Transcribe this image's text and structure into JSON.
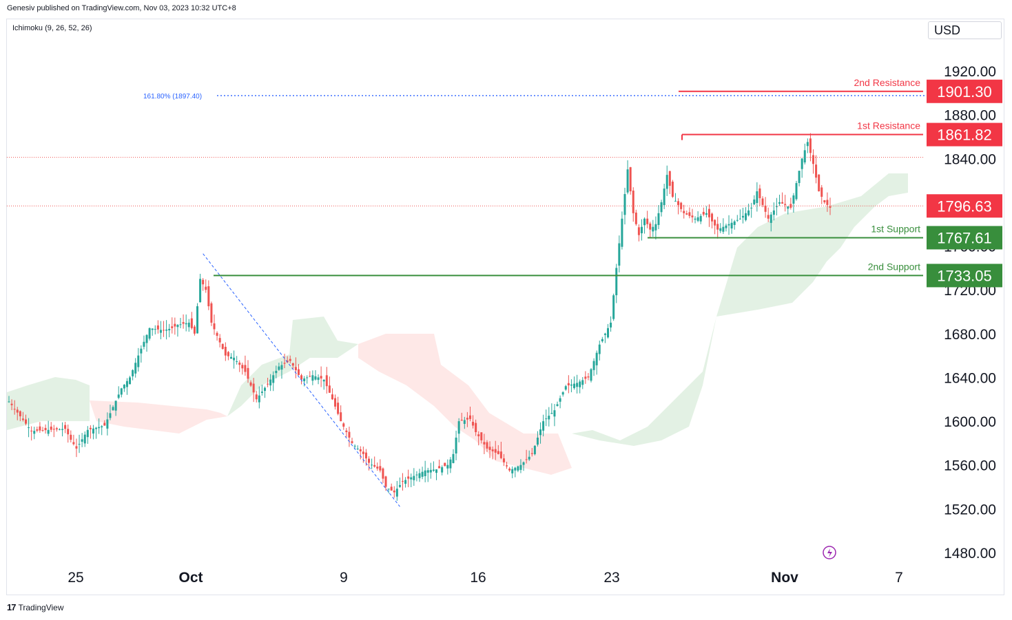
{
  "header": {
    "published_by": "Genesiv published on TradingView.com, Nov 03, 2023 10:32 UTC+8"
  },
  "indicator": {
    "label": "Ichimoku (9, 26, 52, 26)"
  },
  "currency": "USD",
  "footer": {
    "brand": "TradingView",
    "logo": "tradingview-logo"
  },
  "colors": {
    "up": "#26a69a",
    "down": "#ef5350",
    "resistance": "#f23645",
    "support": "#388e3c",
    "fib": "#2962ff"
  },
  "chart_data": {
    "type": "candlestick",
    "price_axis": {
      "ticks": [
        "1920.00",
        "1880.00",
        "1840.00",
        "1800.00",
        "1760.00",
        "1720.00",
        "1680.00",
        "1640.00",
        "1600.00",
        "1560.00",
        "1520.00",
        "1480.00"
      ],
      "values": [
        1920,
        1880,
        1840,
        1800,
        1760,
        1720,
        1680,
        1640,
        1600,
        1560,
        1520,
        1480
      ],
      "ylim": [
        1475,
        1930
      ]
    },
    "time_axis": {
      "labels": [
        "25",
        "Oct",
        "9",
        "16",
        "23",
        "Nov",
        "7"
      ],
      "bold": [
        "Oct",
        "Nov"
      ]
    },
    "levels": [
      {
        "name": "2nd Resistance",
        "value": 1901.3,
        "label": "1901.30",
        "kind": "resistance"
      },
      {
        "name": "1st Resistance",
        "value": 1861.82,
        "label": "1861.82",
        "kind": "resistance"
      },
      {
        "name": "",
        "value": 1796.63,
        "label": "1796.63",
        "kind": "current"
      },
      {
        "name": "1st Support",
        "value": 1767.61,
        "label": "1767.61",
        "kind": "support"
      },
      {
        "name": "2nd Support",
        "value": 1733.05,
        "label": "1733.05",
        "kind": "support"
      }
    ],
    "fib_label": "161.80% (1897.40)",
    "fib_value": 1897.4,
    "dotted_level": 1841,
    "close_path": [
      [
        0,
        1618
      ],
      [
        8,
        1591
      ],
      [
        14,
        1592
      ],
      [
        20,
        1593
      ],
      [
        22,
        1583
      ],
      [
        24,
        1575
      ],
      [
        28,
        1592
      ],
      [
        34,
        1596
      ],
      [
        40,
        1630
      ],
      [
        43,
        1640
      ],
      [
        46,
        1660
      ],
      [
        50,
        1685
      ],
      [
        55,
        1683
      ],
      [
        58,
        1685
      ],
      [
        60,
        1688
      ],
      [
        64,
        1690
      ],
      [
        66,
        1680
      ],
      [
        68,
        1730
      ],
      [
        70,
        1720
      ],
      [
        72,
        1690
      ],
      [
        75,
        1672
      ],
      [
        77,
        1660
      ],
      [
        80,
        1658
      ],
      [
        84,
        1645
      ],
      [
        88,
        1620
      ],
      [
        92,
        1634
      ],
      [
        96,
        1650
      ],
      [
        100,
        1655
      ],
      [
        104,
        1638
      ],
      [
        108,
        1642
      ],
      [
        112,
        1638
      ],
      [
        115,
        1620
      ],
      [
        118,
        1600
      ],
      [
        122,
        1580
      ],
      [
        126,
        1570
      ],
      [
        128,
        1562
      ],
      [
        132,
        1555
      ],
      [
        134,
        1540
      ],
      [
        137,
        1535
      ],
      [
        140,
        1545
      ],
      [
        144,
        1550
      ],
      [
        148,
        1555
      ],
      [
        152,
        1556
      ],
      [
        156,
        1560
      ],
      [
        158,
        1570
      ],
      [
        160,
        1600
      ],
      [
        164,
        1602
      ],
      [
        166,
        1590
      ],
      [
        170,
        1575
      ],
      [
        174,
        1570
      ],
      [
        178,
        1555
      ],
      [
        182,
        1560
      ],
      [
        186,
        1570
      ],
      [
        190,
        1600
      ],
      [
        194,
        1610
      ],
      [
        198,
        1632
      ],
      [
        202,
        1635
      ],
      [
        206,
        1640
      ],
      [
        210,
        1670
      ],
      [
        214,
        1690
      ],
      [
        216,
        1740
      ],
      [
        220,
        1830
      ],
      [
        222,
        1790
      ],
      [
        224,
        1770
      ],
      [
        226,
        1785
      ],
      [
        228,
        1775
      ],
      [
        230,
        1780
      ],
      [
        232,
        1800
      ],
      [
        234,
        1825
      ],
      [
        236,
        1805
      ],
      [
        240,
        1790
      ],
      [
        244,
        1785
      ],
      [
        248,
        1790
      ],
      [
        252,
        1775
      ],
      [
        256,
        1780
      ],
      [
        260,
        1785
      ],
      [
        264,
        1795
      ],
      [
        266,
        1810
      ],
      [
        270,
        1785
      ],
      [
        274,
        1800
      ],
      [
        278,
        1795
      ],
      [
        282,
        1840
      ],
      [
        284,
        1855
      ],
      [
        286,
        1835
      ],
      [
        288,
        1810
      ],
      [
        290,
        1800
      ],
      [
        292,
        1795
      ]
    ],
    "down_trendline": {
      "from": [
        69,
        1753
      ],
      "to": [
        139,
        1522
      ]
    }
  }
}
